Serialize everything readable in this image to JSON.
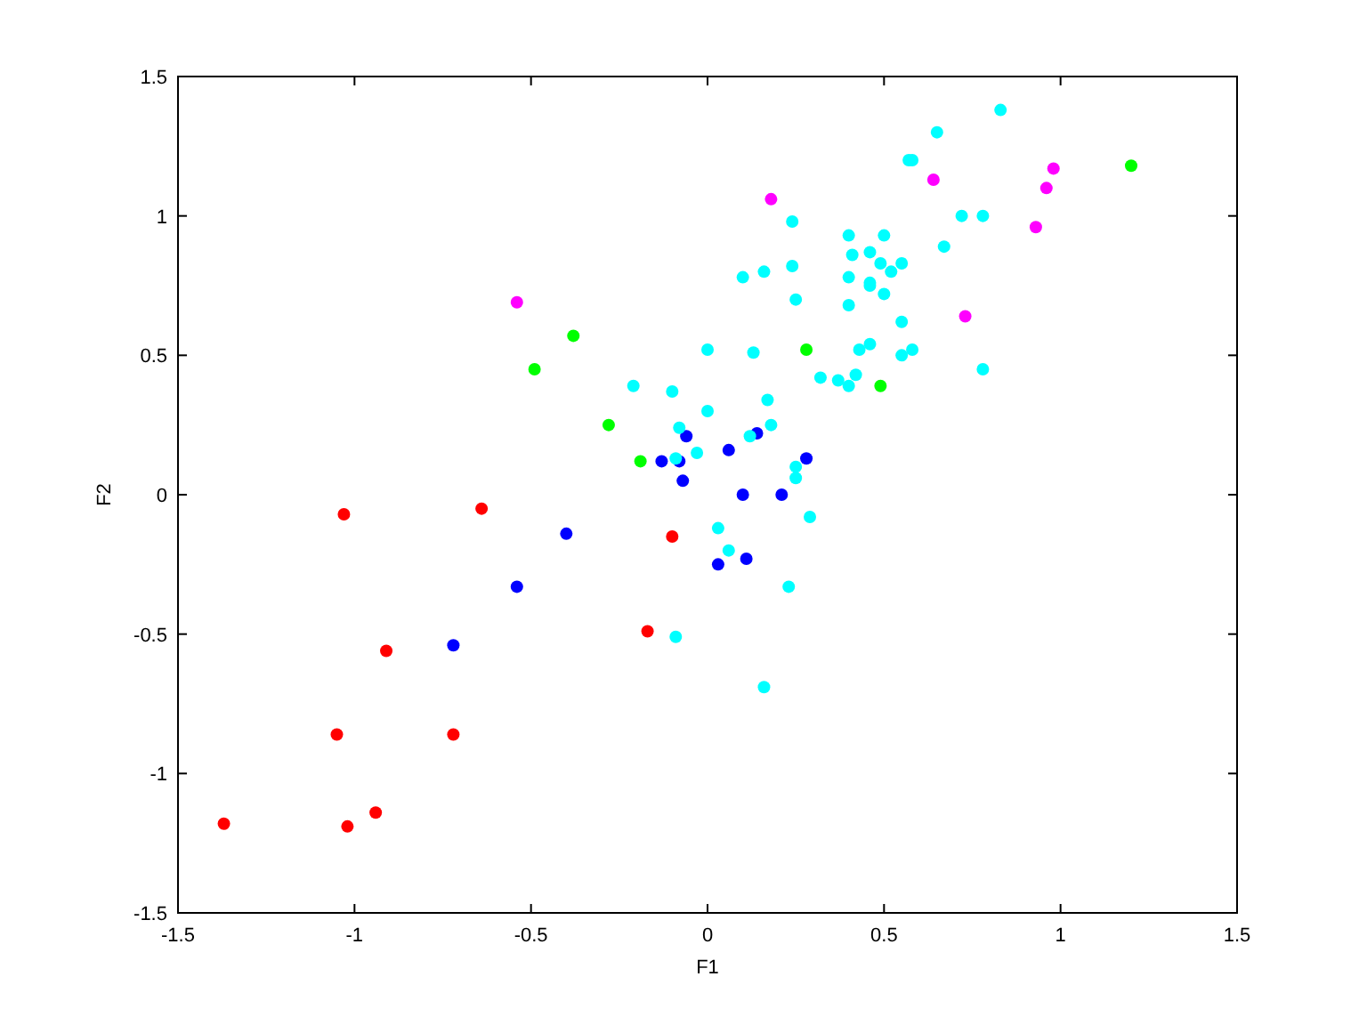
{
  "chart_data": {
    "type": "scatter",
    "xlabel": "F1",
    "ylabel": "F2",
    "xlim": [
      -1.5,
      1.5
    ],
    "ylim": [
      -1.5,
      1.5
    ],
    "xticks": [
      -1.5,
      -1,
      -0.5,
      0,
      0.5,
      1,
      1.5
    ],
    "yticks": [
      -1.5,
      -1,
      -0.5,
      0,
      0.5,
      1,
      1.5
    ],
    "marker": "circle",
    "series": [
      {
        "color": "#ff0000",
        "x": [
          -1.03,
          -0.64,
          -0.1,
          -0.17,
          -0.91,
          -1.05,
          -0.72,
          -1.37,
          -1.02,
          -0.94
        ],
        "values": [
          -0.07,
          -0.05,
          -0.15,
          -0.49,
          -0.56,
          -0.86,
          -0.86,
          -1.18,
          -1.19,
          -1.14
        ]
      },
      {
        "color": "#0000ff",
        "x": [
          -0.72,
          -0.54,
          -0.4,
          -0.13,
          -0.08,
          -0.07,
          -0.06,
          0.14,
          0.06,
          0.28,
          0.1,
          0.21,
          0.03,
          0.11
        ],
        "values": [
          -0.54,
          -0.33,
          -0.14,
          0.12,
          0.12,
          0.05,
          0.21,
          0.22,
          0.16,
          0.13,
          0,
          0,
          -0.25,
          -0.23
        ]
      },
      {
        "color": "#00ff00",
        "x": [
          -0.38,
          -0.49,
          -0.28,
          -0.19,
          0.28,
          0.49,
          1.2
        ],
        "values": [
          0.57,
          0.45,
          0.25,
          0.12,
          0.52,
          0.39,
          1.18
        ]
      },
      {
        "color": "#ff00ff",
        "x": [
          -0.54,
          0.18,
          0.64,
          0.98,
          0.96,
          0.93,
          0.73
        ],
        "values": [
          0.69,
          1.06,
          1.13,
          1.17,
          1.1,
          0.96,
          0.64
        ]
      },
      {
        "color": "#00ffff",
        "x": [
          0,
          -0.21,
          -0.1,
          0,
          -0.08,
          -0.03,
          -0.09,
          0.83,
          0.65,
          0.57,
          0.58,
          0.24,
          0.72,
          0.78,
          0.4,
          0.5,
          0.67,
          0.41,
          0.46,
          0.49,
          0.55,
          0.52,
          0.24,
          0.16,
          0.1,
          0.4,
          0.46,
          0.46,
          0.5,
          0.25,
          0.4,
          0.55,
          0.13,
          0.43,
          0.46,
          0.55,
          0.58,
          0.78,
          0.32,
          0.37,
          0.4,
          0.42,
          0.17,
          0.18,
          0.12,
          0.25,
          0.25,
          0.03,
          0.29,
          0.06,
          0.23,
          0.16,
          -0.09
        ],
        "values": [
          0.52,
          0.39,
          0.37,
          0.3,
          0.24,
          0.15,
          0.13,
          1.38,
          1.3,
          1.2,
          1.2,
          0.98,
          1,
          1,
          0.93,
          0.93,
          0.89,
          0.86,
          0.87,
          0.83,
          0.83,
          0.8,
          0.82,
          0.8,
          0.78,
          0.78,
          0.76,
          0.75,
          0.72,
          0.7,
          0.68,
          0.62,
          0.51,
          0.52,
          0.54,
          0.5,
          0.52,
          0.45,
          0.42,
          0.41,
          0.39,
          0.43,
          0.34,
          0.25,
          0.21,
          0.1,
          0.06,
          -0.12,
          -0.08,
          -0.2,
          -0.33,
          -0.69,
          -0.51
        ]
      }
    ]
  }
}
